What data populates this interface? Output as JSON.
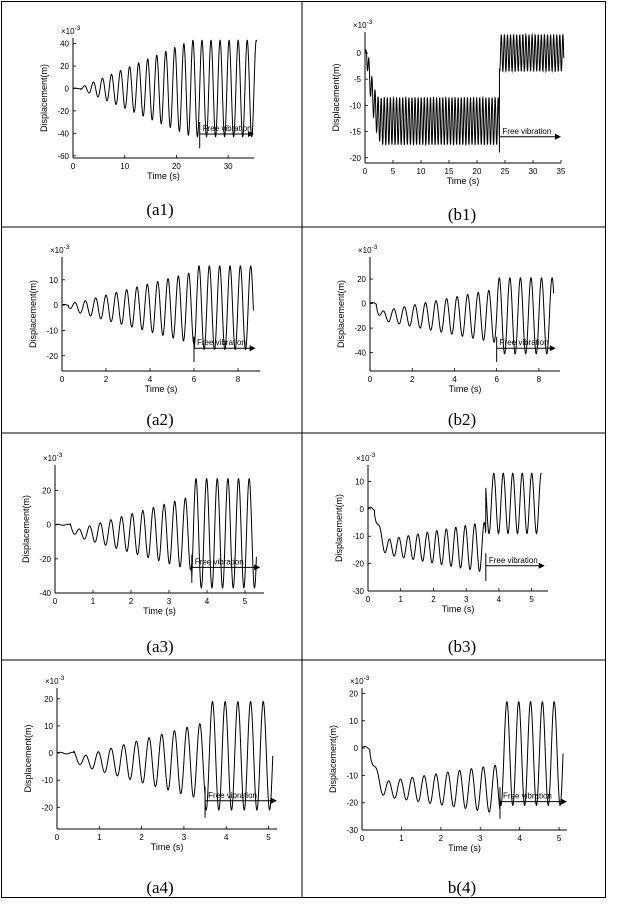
{
  "common": {
    "ylabel": "Displacement(m)",
    "xlabel": "Time (s)",
    "exponent": "10",
    "exponent_power": "-3",
    "annotation": "Free vibration"
  },
  "chart_data": [
    {
      "id": "a1",
      "caption": "(a1)",
      "type": "line",
      "xlim": [
        0,
        35
      ],
      "ylim": [
        -62,
        45
      ],
      "xticks": [
        0,
        10,
        20,
        30
      ],
      "yticks": [
        40,
        20,
        0,
        -20,
        -40,
        -60
      ],
      "free_start": 24.5,
      "free_arrow_end": 35,
      "signal": {
        "t_end": 35.5,
        "period": 1.75,
        "amp_start": 1,
        "amp_grow_end": 23,
        "amp_max": 43,
        "offset_start": 0,
        "offset_end": 0,
        "offset_settle": 24.5,
        "free_offset": 0,
        "free_amp": 43,
        "delay": 1.5
      }
    },
    {
      "id": "b1",
      "caption": "(b1)",
      "type": "line",
      "xlim": [
        0,
        35
      ],
      "ylim": [
        -21,
        4
      ],
      "xticks": [
        0,
        5,
        10,
        15,
        20,
        25,
        30,
        35
      ],
      "yticks": [
        0,
        -5,
        -10,
        -15,
        -20
      ],
      "free_start": 24,
      "free_arrow_end": 35,
      "signal": {
        "t_end": 35.5,
        "period": 0.55,
        "amp_start": 2,
        "amp_grow_end": 3,
        "amp_max": 4.5,
        "offset_start": 0,
        "offset_end": -13,
        "offset_settle": 3,
        "free_offset": 0,
        "free_amp": 3.5,
        "delay": 0.3
      }
    },
    {
      "id": "a2",
      "caption": "(a2)",
      "type": "line",
      "xlim": [
        0,
        9
      ],
      "ylim": [
        -26,
        19
      ],
      "xticks": [
        0,
        2,
        4,
        6,
        8
      ],
      "yticks": [
        10,
        0,
        -10,
        -20
      ],
      "free_start": 6,
      "free_arrow_end": 8.8,
      "signal": {
        "t_end": 8.7,
        "period": 0.47,
        "amp_start": 1,
        "amp_grow_end": 7,
        "amp_max": 16.5,
        "offset_start": 0,
        "offset_end": -1,
        "offset_settle": 1,
        "free_offset": -1,
        "free_amp": 16.5,
        "delay": 0.3
      }
    },
    {
      "id": "b2",
      "caption": "(b2)",
      "type": "line",
      "xlim": [
        0,
        9
      ],
      "ylim": [
        -55,
        38
      ],
      "xticks": [
        0,
        2,
        4,
        6,
        8
      ],
      "yticks": [
        20,
        0,
        -20,
        -40
      ],
      "free_start": 6,
      "free_arrow_end": 8.8,
      "signal": {
        "t_end": 8.7,
        "period": 0.5,
        "amp_start": 3,
        "amp_grow_end": 6,
        "amp_max": 22,
        "offset_start": 0,
        "offset_end": -10,
        "offset_settle": 0.6,
        "free_offset": -10,
        "free_amp": 31,
        "delay": 0.3
      }
    },
    {
      "id": "a3",
      "caption": "(a3)",
      "type": "line",
      "xlim": [
        0,
        5.5
      ],
      "ylim": [
        -40,
        35
      ],
      "xticks": [
        0,
        1,
        2,
        3,
        4,
        5
      ],
      "yticks": [
        20,
        0,
        -20,
        -40
      ],
      "free_start": 3.6,
      "free_arrow_end": 5.4,
      "signal": {
        "t_end": 5.3,
        "period": 0.28,
        "amp_start": 1,
        "amp_grow_end": 5.2,
        "amp_max": 32,
        "offset_start": 0,
        "offset_end": -5,
        "offset_settle": 0.6,
        "free_offset": -5,
        "free_amp": 32,
        "delay": 0.4
      }
    },
    {
      "id": "b3",
      "caption": "(b3)",
      "type": "line",
      "xlim": [
        0,
        5.5
      ],
      "ylim": [
        -30,
        16
      ],
      "xticks": [
        0,
        1,
        2,
        3,
        4,
        5
      ],
      "yticks": [
        10,
        0,
        -10,
        -20,
        -30
      ],
      "free_start": 3.6,
      "free_arrow_end": 5.4,
      "signal": {
        "t_end": 5.3,
        "period": 0.29,
        "amp_start": 2,
        "amp_grow_end": 3.5,
        "amp_max": 9,
        "offset_start": 0,
        "offset_end": -14,
        "offset_settle": 0.6,
        "free_offset": 2,
        "free_amp": 11,
        "delay": 0.2
      }
    },
    {
      "id": "a4",
      "caption": "(a4)",
      "type": "line",
      "xlim": [
        0,
        5.2
      ],
      "ylim": [
        -28,
        24
      ],
      "xticks": [
        0,
        1,
        2,
        3,
        4,
        5
      ],
      "yticks": [
        20,
        10,
        0,
        -10,
        -20
      ],
      "free_start": 3.5,
      "free_arrow_end": 5.2,
      "signal": {
        "t_end": 5.1,
        "period": 0.3,
        "amp_start": 1,
        "amp_grow_end": 4.8,
        "amp_max": 20,
        "offset_start": 0,
        "offset_end": -3,
        "offset_settle": 0.6,
        "free_offset": -1,
        "free_amp": 20,
        "delay": 0.4
      }
    },
    {
      "id": "b4",
      "caption": "b(4)",
      "type": "line",
      "xlim": [
        0,
        5.2
      ],
      "ylim": [
        -30,
        22
      ],
      "xticks": [
        0,
        1,
        2,
        3,
        4,
        5
      ],
      "yticks": [
        20,
        10,
        0,
        -10,
        -20,
        -30
      ],
      "free_start": 3.5,
      "free_arrow_end": 5.2,
      "signal": {
        "t_end": 5.1,
        "period": 0.3,
        "amp_start": 2,
        "amp_grow_end": 3.5,
        "amp_max": 9,
        "offset_start": 0,
        "offset_end": -15,
        "offset_settle": 0.6,
        "free_offset": -2,
        "free_amp": 19,
        "delay": 0.2
      }
    }
  ]
}
